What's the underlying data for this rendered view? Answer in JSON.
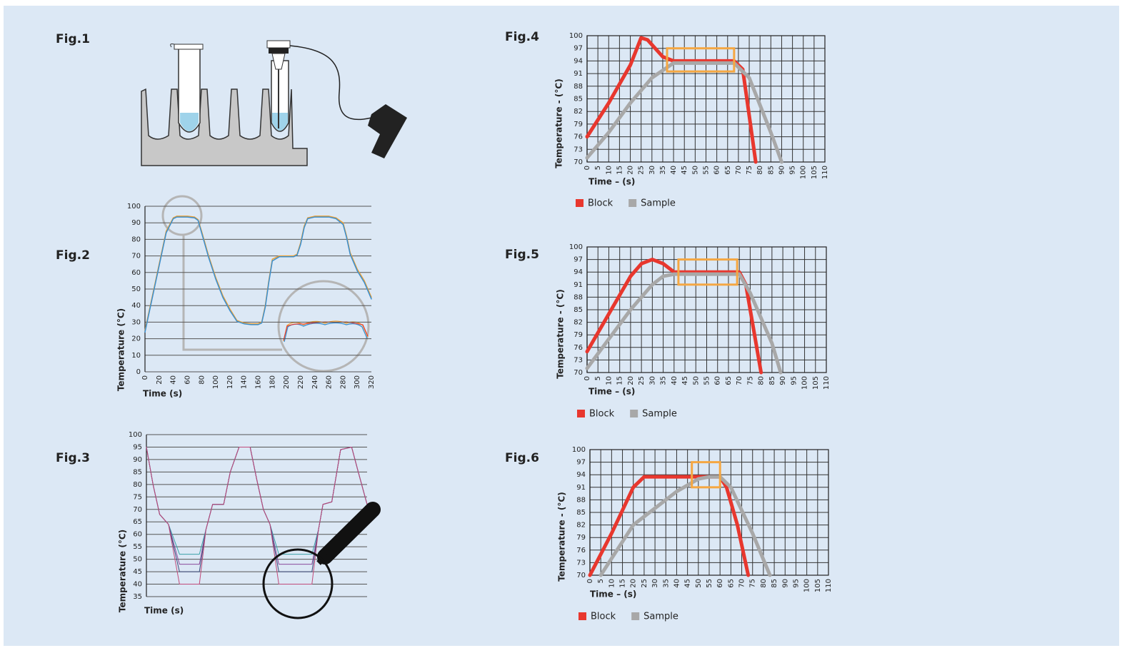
{
  "illustration": {
    "label": "Fig.1"
  },
  "chart_data": [
    {
      "type": "line",
      "label": "Fig.2",
      "ylabel": "Temperature (°C)",
      "xlabel": "Time (s)",
      "xlim": [
        0,
        320
      ],
      "xticks": [
        0,
        20,
        40,
        60,
        80,
        100,
        120,
        140,
        160,
        180,
        200,
        220,
        240,
        260,
        280,
        300,
        320
      ],
      "ylim": [
        0,
        100
      ],
      "yticks": [
        0,
        10,
        20,
        30,
        40,
        50,
        60,
        70,
        80,
        90,
        100
      ],
      "grid": "y",
      "series": [
        {
          "color": "#f0a030",
          "x": [
            0,
            10,
            20,
            30,
            40,
            45,
            50,
            60,
            70,
            75,
            80,
            90,
            100,
            110,
            120,
            130,
            140,
            150,
            160,
            165,
            170,
            175,
            180,
            190,
            200,
            210,
            215,
            220,
            225,
            230,
            240,
            250,
            260,
            270,
            280,
            285,
            290,
            300,
            310,
            320
          ],
          "values": [
            25,
            45,
            65,
            85,
            93,
            94,
            94,
            94,
            93.5,
            92,
            85,
            70,
            57,
            46,
            38,
            31,
            29.5,
            29,
            29,
            30,
            40,
            55,
            68,
            70,
            70,
            70,
            71,
            78,
            88,
            93,
            94,
            94,
            94,
            93,
            90,
            82,
            72,
            62,
            55,
            45
          ]
        },
        {
          "color": "#3a8fd0",
          "x": [
            0,
            10,
            20,
            30,
            40,
            45,
            50,
            60,
            70,
            75,
            80,
            90,
            100,
            110,
            120,
            130,
            140,
            150,
            160,
            165,
            170,
            175,
            180,
            190,
            200,
            210,
            215,
            220,
            225,
            230,
            240,
            250,
            260,
            270,
            280,
            285,
            290,
            300,
            310,
            320
          ],
          "values": [
            24,
            44,
            64,
            84,
            92.5,
            93.5,
            93.5,
            93.5,
            93,
            91.5,
            84,
            69,
            56,
            45,
            37,
            30.5,
            29,
            28.5,
            28.5,
            29.5,
            39,
            54,
            67,
            69.5,
            69.5,
            69.5,
            70.5,
            77,
            87,
            92.5,
            93.5,
            93.5,
            93.5,
            92.5,
            89,
            81,
            71,
            61,
            54,
            44
          ]
        }
      ]
    },
    {
      "type": "line",
      "label": "Fig.3",
      "ylabel": "Temperature (°C)",
      "xlabel": "Time (s)",
      "xlim": [
        0,
        100
      ],
      "ylim": [
        35,
        100
      ],
      "yticks": [
        35,
        40,
        45,
        50,
        55,
        60,
        65,
        70,
        75,
        80,
        85,
        90,
        95,
        100
      ],
      "grid": "y",
      "series": [
        {
          "color": "#3aa0a8",
          "x": [
            0,
            3,
            6,
            10,
            15,
            24,
            27,
            30,
            35,
            38,
            42,
            47,
            50,
            53,
            56,
            60,
            75,
            78,
            80,
            84,
            88,
            93,
            96,
            100
          ],
          "values": [
            95,
            80,
            68,
            64,
            52,
            52,
            62,
            72,
            72,
            85,
            95,
            95,
            82,
            70,
            64,
            52,
            52,
            62,
            72,
            73,
            94,
            95,
            85,
            72
          ]
        },
        {
          "color": "#8a4a9a",
          "x": [
            0,
            3,
            6,
            10,
            15,
            24,
            27,
            30,
            35,
            38,
            42,
            47,
            50,
            53,
            56,
            60,
            75,
            78,
            80,
            84,
            88,
            93,
            96,
            100
          ],
          "values": [
            95,
            80,
            68,
            64,
            48,
            48,
            62,
            72,
            72,
            85,
            95,
            95,
            82,
            70,
            64,
            48,
            48,
            62,
            72,
            73,
            94,
            95,
            85,
            72
          ]
        },
        {
          "color": "#3a4a7a",
          "x": [
            0,
            3,
            6,
            10,
            15,
            24,
            27,
            30,
            35,
            38,
            42,
            47,
            50,
            53,
            56,
            60,
            75,
            78,
            80,
            84,
            88,
            93,
            96,
            100
          ],
          "values": [
            95,
            80,
            68,
            64,
            45,
            45,
            62,
            72,
            72,
            85,
            95,
            95,
            82,
            70,
            64,
            45,
            45,
            62,
            72,
            73,
            94,
            95,
            85,
            72
          ]
        },
        {
          "color": "#c04a7a",
          "x": [
            0,
            3,
            6,
            10,
            15,
            24,
            27,
            30,
            35,
            38,
            42,
            47,
            50,
            53,
            56,
            60,
            75,
            78,
            80,
            84,
            88,
            93,
            96,
            100
          ],
          "values": [
            95,
            80,
            68,
            64,
            40,
            40,
            62,
            72,
            72,
            85,
            95,
            95,
            82,
            70,
            64,
            40,
            40,
            62,
            72,
            73,
            94,
            95,
            85,
            72
          ]
        }
      ]
    },
    {
      "type": "line",
      "label": "Fig.4",
      "ylabel": "Temperature - (°C)",
      "xlabel": "Time – (s)",
      "xlim": [
        0,
        110
      ],
      "xticks": [
        0,
        5,
        10,
        15,
        20,
        25,
        30,
        35,
        40,
        45,
        50,
        55,
        60,
        65,
        70,
        75,
        80,
        85,
        90,
        95,
        100,
        105,
        110
      ],
      "ylim": [
        70,
        100
      ],
      "yticks": [
        70,
        73,
        76,
        79,
        82,
        85,
        88,
        91,
        94,
        97,
        100
      ],
      "grid": "both",
      "legend": "bottom-left",
      "highlight": {
        "color": "#f5a742",
        "x": [
          37,
          68
        ],
        "y": [
          91.5,
          97
        ]
      },
      "series": [
        {
          "name": "Block",
          "color": "#e8372e",
          "x": [
            0,
            10,
            20,
            25,
            28,
            35,
            40,
            68,
            72,
            78
          ],
          "values": [
            76,
            84,
            93,
            99.5,
            99,
            95,
            94,
            94,
            92,
            70
          ]
        },
        {
          "name": "Sample",
          "color": "#a8a8a8",
          "x": [
            0,
            10,
            20,
            30,
            40,
            68,
            75,
            85,
            90
          ],
          "values": [
            71,
            77,
            84,
            90,
            93.5,
            93.5,
            90,
            77,
            70
          ]
        }
      ]
    },
    {
      "type": "line",
      "label": "Fig.5",
      "ylabel": "Temperature - (°C)",
      "xlabel": "Time – (s)",
      "xlim": [
        0,
        110
      ],
      "xticks": [
        0,
        5,
        10,
        15,
        20,
        25,
        30,
        35,
        40,
        45,
        50,
        55,
        60,
        65,
        70,
        75,
        80,
        85,
        90,
        95,
        100,
        105,
        110
      ],
      "ylim": [
        70,
        100
      ],
      "yticks": [
        70,
        73,
        76,
        79,
        82,
        85,
        88,
        91,
        94,
        97,
        100
      ],
      "grid": "both",
      "legend": "bottom-left",
      "highlight": {
        "color": "#f5a742",
        "x": [
          42,
          69
        ],
        "y": [
          91,
          97
        ]
      },
      "series": [
        {
          "name": "Block",
          "color": "#e8372e",
          "x": [
            0,
            10,
            20,
            25,
            30,
            35,
            40,
            70,
            73,
            80
          ],
          "values": [
            75,
            84,
            93,
            96,
            97,
            96,
            94,
            94,
            91,
            70
          ]
        },
        {
          "name": "Sample",
          "color": "#a8a8a8",
          "x": [
            0,
            10,
            20,
            30,
            35,
            40,
            70,
            75,
            85,
            89
          ],
          "values": [
            71,
            78,
            85,
            91,
            93,
            93.5,
            93.5,
            89,
            77,
            70
          ]
        }
      ]
    },
    {
      "type": "line",
      "label": "Fig.6",
      "ylabel": "Temperature - (°C)",
      "xlabel": "Time – (s)",
      "xlim": [
        0,
        110
      ],
      "xticks": [
        0,
        5,
        10,
        15,
        20,
        25,
        30,
        35,
        40,
        45,
        50,
        55,
        60,
        65,
        70,
        75,
        80,
        85,
        90,
        95,
        100,
        105,
        110
      ],
      "ylim": [
        70,
        100
      ],
      "yticks": [
        70,
        73,
        76,
        79,
        82,
        85,
        88,
        91,
        94,
        97,
        100
      ],
      "grid": "both",
      "legend": "bottom-left",
      "highlight": {
        "color": "#f5a742",
        "x": [
          47,
          60
        ],
        "y": [
          91,
          97
        ]
      },
      "series": [
        {
          "name": "Block",
          "color": "#e8372e",
          "x": [
            0,
            10,
            20,
            25,
            60,
            63,
            68,
            73
          ],
          "values": [
            70,
            80,
            91,
            93.5,
            93.5,
            91,
            82,
            70
          ]
        },
        {
          "name": "Sample",
          "color": "#a8a8a8",
          "x": [
            5,
            10,
            20,
            30,
            40,
            50,
            55,
            60,
            65,
            75,
            83
          ],
          "values": [
            70,
            74,
            82,
            86,
            90,
            93,
            93.5,
            93.5,
            91,
            80,
            70
          ]
        }
      ]
    }
  ]
}
